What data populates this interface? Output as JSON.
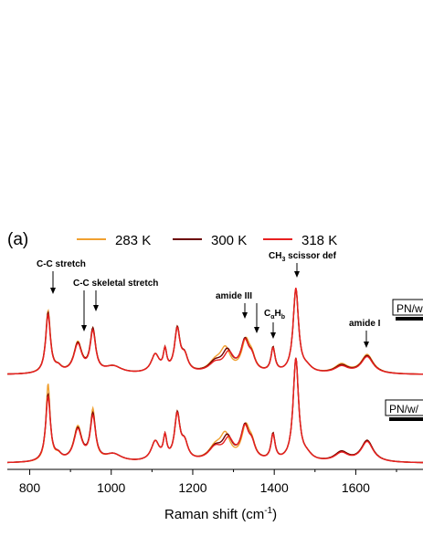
{
  "chart_data": {
    "type": "line",
    "panel_label": "(a)",
    "xlabel": "Raman shift (cm",
    "xlabel_sup": "-1",
    "xlabel_tail": ")",
    "xlim": [
      745,
      1765
    ],
    "x_ticks": [
      "800",
      "1000",
      "1200",
      "1400",
      "1600"
    ],
    "legend": [
      {
        "name": "283 K",
        "color": "#F0A030"
      },
      {
        "name": "300 K",
        "color": "#6B0000"
      },
      {
        "name": "318 K",
        "color": "#E82020"
      }
    ],
    "annotations": {
      "cc_stretch": "C-C stretch",
      "cc_skeletal": "C-C skeletal stretch",
      "amide3": "amide III",
      "ch3_prefix": "CH",
      "ch3_sub": "3",
      "ch3_suffix": " scissor def",
      "ca_prefix": "C",
      "ca_sub1": "α",
      "ca_mid": "H",
      "ca_sub2": "b",
      "amide1": "amide I"
    },
    "sample_labels": [
      "PN/w",
      "PN/w/"
    ],
    "spectra": [
      {
        "sample": "PN/w",
        "series": [
          {
            "name": "283 K",
            "peaks": [
              [
                845,
                0.62,
                7
              ],
              [
                870,
                0.05,
                10
              ],
              [
                918,
                0.3,
                12
              ],
              [
                955,
                0.42,
                8
              ],
              [
                1005,
                0.07,
                25
              ],
              [
                1108,
                0.18,
                12
              ],
              [
                1132,
                0.2,
                5
              ],
              [
                1162,
                0.42,
                8
              ],
              [
                1180,
                0.15,
                10
              ],
              [
                1255,
                0.1,
                20
              ],
              [
                1280,
                0.22,
                15
              ],
              [
                1330,
                0.3,
                12
              ],
              [
                1345,
                0.12,
                10
              ],
              [
                1397,
                0.24,
                6
              ],
              [
                1453,
                0.83,
                8
              ],
              [
                1480,
                0.05,
                15
              ],
              [
                1565,
                0.09,
                20
              ],
              [
                1628,
                0.19,
                18
              ]
            ]
          },
          {
            "name": "300 K",
            "peaks": [
              [
                845,
                0.6,
                7
              ],
              [
                870,
                0.05,
                10
              ],
              [
                918,
                0.29,
                12
              ],
              [
                955,
                0.42,
                8
              ],
              [
                1005,
                0.07,
                25
              ],
              [
                1108,
                0.18,
                12
              ],
              [
                1132,
                0.2,
                5
              ],
              [
                1162,
                0.42,
                8
              ],
              [
                1180,
                0.15,
                10
              ],
              [
                1255,
                0.1,
                20
              ],
              [
                1285,
                0.2,
                15
              ],
              [
                1328,
                0.3,
                12
              ],
              [
                1345,
                0.12,
                10
              ],
              [
                1397,
                0.24,
                6
              ],
              [
                1453,
                0.83,
                8
              ],
              [
                1480,
                0.05,
                15
              ],
              [
                1565,
                0.08,
                20
              ],
              [
                1628,
                0.18,
                18
              ]
            ]
          },
          {
            "name": "318 K",
            "peaks": [
              [
                845,
                0.58,
                7
              ],
              [
                870,
                0.05,
                10
              ],
              [
                918,
                0.28,
                12
              ],
              [
                955,
                0.4,
                8
              ],
              [
                1005,
                0.07,
                25
              ],
              [
                1108,
                0.18,
                12
              ],
              [
                1132,
                0.2,
                5
              ],
              [
                1162,
                0.41,
                8
              ],
              [
                1180,
                0.15,
                10
              ],
              [
                1255,
                0.09,
                20
              ],
              [
                1288,
                0.18,
                15
              ],
              [
                1328,
                0.29,
                12
              ],
              [
                1345,
                0.12,
                10
              ],
              [
                1397,
                0.23,
                6
              ],
              [
                1453,
                0.84,
                8
              ],
              [
                1480,
                0.05,
                15
              ],
              [
                1565,
                0.07,
                20
              ],
              [
                1628,
                0.17,
                18
              ]
            ]
          }
        ]
      },
      {
        "sample": "PN/w/",
        "series": [
          {
            "name": "283 K",
            "peaks": [
              [
                845,
                0.72,
                6
              ],
              [
                870,
                0.05,
                10
              ],
              [
                918,
                0.32,
                12
              ],
              [
                955,
                0.46,
                7
              ],
              [
                1005,
                0.07,
                25
              ],
              [
                1108,
                0.18,
                12
              ],
              [
                1132,
                0.2,
                5
              ],
              [
                1162,
                0.42,
                8
              ],
              [
                1180,
                0.15,
                10
              ],
              [
                1255,
                0.12,
                20
              ],
              [
                1280,
                0.22,
                15
              ],
              [
                1330,
                0.3,
                12
              ],
              [
                1345,
                0.12,
                10
              ],
              [
                1397,
                0.24,
                6
              ],
              [
                1453,
                0.95,
                8
              ],
              [
                1480,
                0.05,
                15
              ],
              [
                1565,
                0.09,
                20
              ],
              [
                1628,
                0.2,
                18
              ]
            ]
          },
          {
            "name": "300 K",
            "peaks": [
              [
                845,
                0.62,
                7
              ],
              [
                870,
                0.05,
                10
              ],
              [
                918,
                0.3,
                12
              ],
              [
                955,
                0.42,
                8
              ],
              [
                1005,
                0.07,
                25
              ],
              [
                1108,
                0.18,
                12
              ],
              [
                1132,
                0.2,
                5
              ],
              [
                1162,
                0.42,
                8
              ],
              [
                1180,
                0.15,
                10
              ],
              [
                1255,
                0.12,
                20
              ],
              [
                1285,
                0.2,
                15
              ],
              [
                1328,
                0.3,
                12
              ],
              [
                1345,
                0.12,
                10
              ],
              [
                1397,
                0.24,
                6
              ],
              [
                1453,
                0.95,
                8
              ],
              [
                1480,
                0.05,
                15
              ],
              [
                1565,
                0.09,
                20
              ],
              [
                1628,
                0.2,
                18
              ]
            ]
          },
          {
            "name": "318 K",
            "peaks": [
              [
                845,
                0.6,
                7
              ],
              [
                870,
                0.05,
                10
              ],
              [
                918,
                0.29,
                12
              ],
              [
                955,
                0.4,
                8
              ],
              [
                1005,
                0.07,
                25
              ],
              [
                1108,
                0.18,
                12
              ],
              [
                1132,
                0.2,
                5
              ],
              [
                1162,
                0.41,
                8
              ],
              [
                1180,
                0.15,
                10
              ],
              [
                1255,
                0.12,
                20
              ],
              [
                1288,
                0.18,
                15
              ],
              [
                1328,
                0.29,
                12
              ],
              [
                1345,
                0.12,
                10
              ],
              [
                1397,
                0.23,
                6
              ],
              [
                1453,
                0.95,
                8
              ],
              [
                1480,
                0.05,
                15
              ],
              [
                1565,
                0.08,
                20
              ],
              [
                1628,
                0.19,
                18
              ]
            ]
          }
        ]
      }
    ]
  }
}
